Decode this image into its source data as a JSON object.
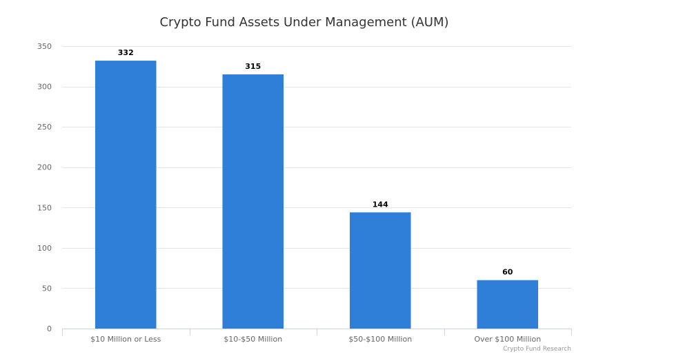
{
  "chart_data": {
    "type": "bar",
    "title": "Crypto Fund Assets Under Management (AUM)",
    "categories": [
      "$10 Million or Less",
      "$10-$50 Million",
      "$50-$100 Million",
      "Over $100 Million"
    ],
    "values": [
      332,
      315,
      144,
      60
    ],
    "xlabel": "",
    "ylabel": "",
    "ylim": [
      0,
      350
    ],
    "yticks": [
      0,
      50,
      100,
      150,
      200,
      250,
      300,
      350
    ],
    "grid": true,
    "bar_color": "#2f7ed8",
    "data_labels": true,
    "credit": "Crypto Fund Research"
  }
}
